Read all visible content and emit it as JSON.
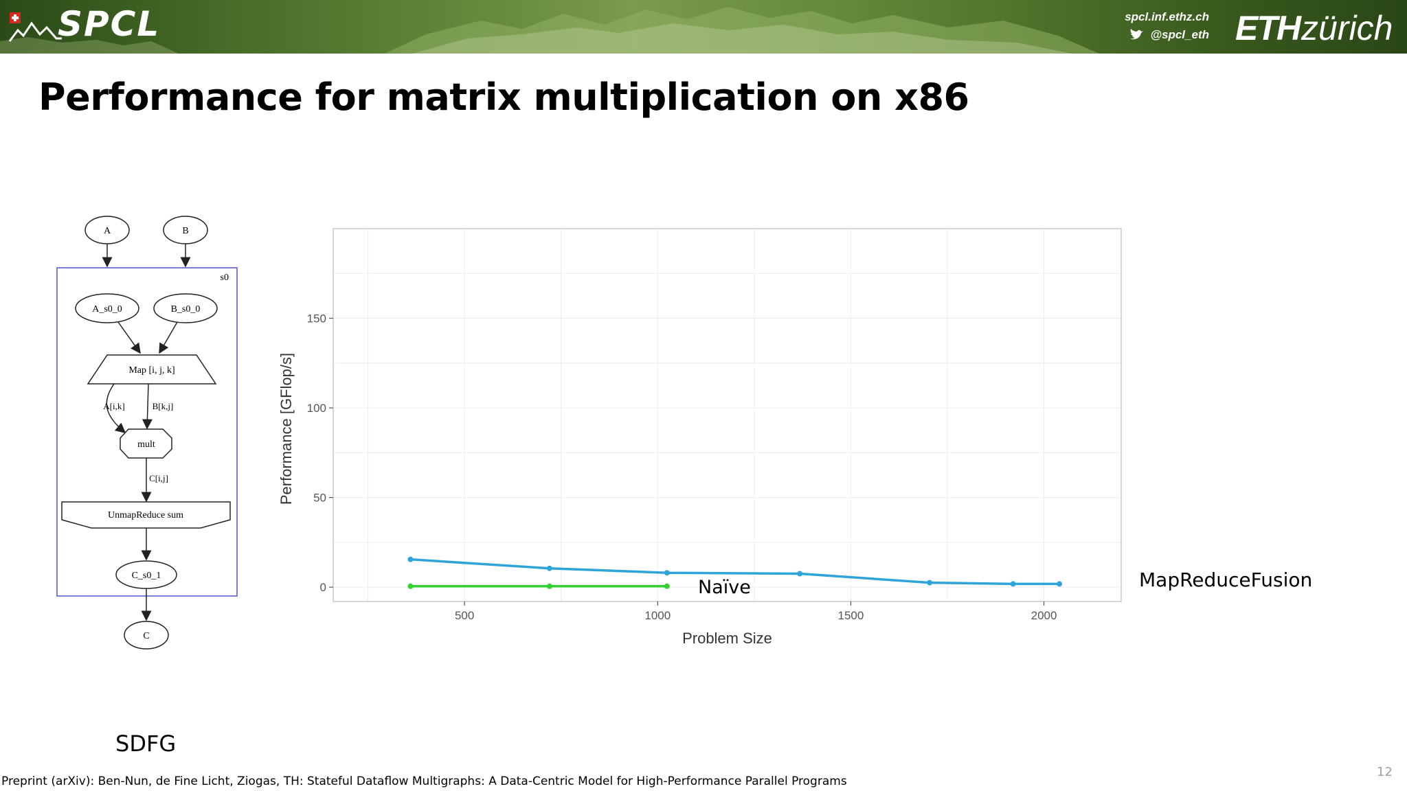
{
  "header": {
    "logo_text": "SPCL",
    "site": "spcl.inf.ethz.ch",
    "twitter": "@spcl_eth",
    "eth_bold": "ETH",
    "eth_light": "zürich"
  },
  "slide": {
    "title": "Performance for matrix multiplication on x86",
    "sdfg_caption": "SDFG",
    "footnote": "Preprint (arXiv): Ben-Nun, de Fine Licht, Ziogas, TH: Stateful Dataflow Multigraphs: A Data-Centric Model for High-Performance Parallel Programs",
    "page_number": "12"
  },
  "sdfg_diagram": {
    "state_label": "s0",
    "nodes": {
      "a": "A",
      "b": "B",
      "a_s0": "A_s0_0",
      "b_s0": "B_s0_0",
      "map": "Map [i, j, k]",
      "edge_a": "A[i,k]",
      "edge_b": "B[k,j]",
      "tasklet": "mult",
      "edge_c": "C[i,j]",
      "unmap": "UnmapReduce sum",
      "c_s0": "C_s0_1",
      "c": "C"
    }
  },
  "chart_data": {
    "type": "line",
    "xlabel": "Problem Size",
    "ylabel": "Performance [GFlop/s]",
    "xlim": [
      160,
      2200
    ],
    "ylim": [
      -8,
      200
    ],
    "xticks": [
      500,
      1000,
      1500,
      2000
    ],
    "yticks": [
      0,
      50,
      100,
      150
    ],
    "grid": true,
    "series": [
      {
        "name": "MapReduceFusion",
        "color": "#2fa4d8",
        "x": [
          360,
          720,
          1024,
          1368,
          1704,
          1920,
          2040
        ],
        "y": [
          15.5,
          10.5,
          8,
          7.5,
          2.5,
          1.8,
          1.8
        ]
      },
      {
        "name": "Naïve",
        "color": "#33d133",
        "x": [
          360,
          720,
          1024
        ],
        "y": [
          0.5,
          0.5,
          0.5
        ]
      }
    ]
  },
  "colors": {
    "header_green": "#4c6e28",
    "state_border": "#7b7bd8"
  }
}
